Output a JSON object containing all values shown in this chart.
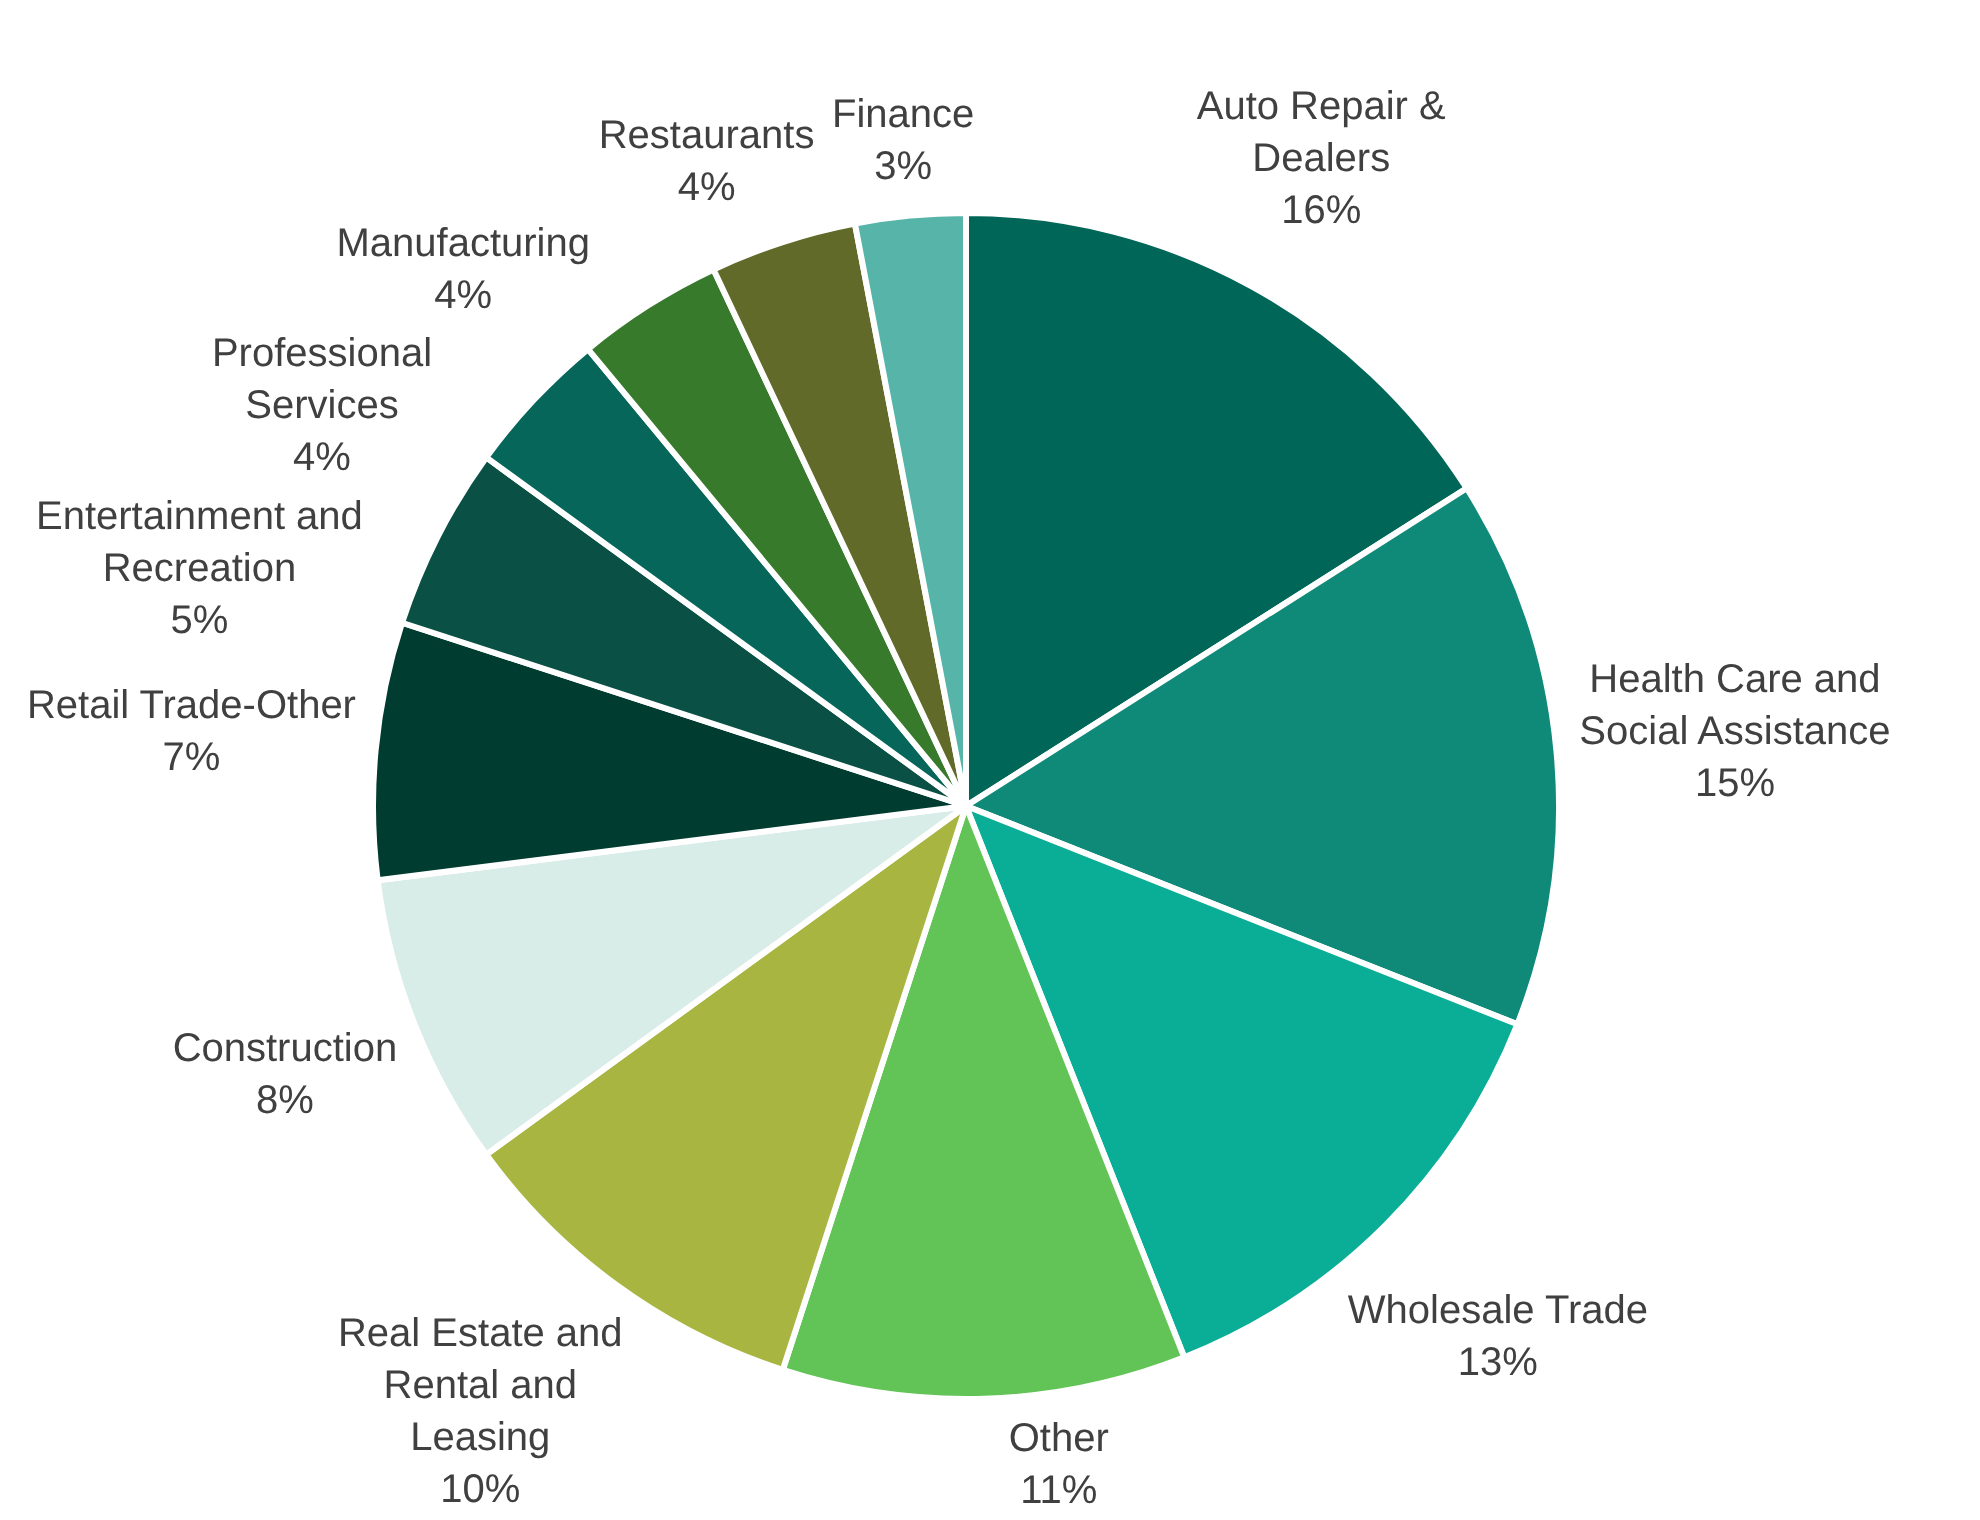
{
  "chart_data": {
    "type": "pie",
    "categories": [
      "Auto Repair & Dealers",
      "Health Care and Social Assistance",
      "Wholesale Trade",
      "Other",
      "Real Estate and Rental and Leasing",
      "Construction",
      "Retail Trade-Other",
      "Entertainment and Recreation",
      "Professional Services",
      "Manufacturing",
      "Restaurants",
      "Finance"
    ],
    "values": [
      16,
      15,
      13,
      11,
      10,
      8,
      7,
      5,
      4,
      4,
      4,
      3
    ],
    "value_labels": [
      "16%",
      "15%",
      "13%",
      "11%",
      "10%",
      "8%",
      "7%",
      "5%",
      "4%",
      "4%",
      "4%",
      "3%"
    ],
    "colors": [
      "#006657",
      "#0f8a78",
      "#0aae96",
      "#62c456",
      "#a8b541",
      "#d8ece8",
      "#013c31",
      "#0b5045",
      "#06665a",
      "#377a2c",
      "#616a28",
      "#56b5a8"
    ]
  }
}
